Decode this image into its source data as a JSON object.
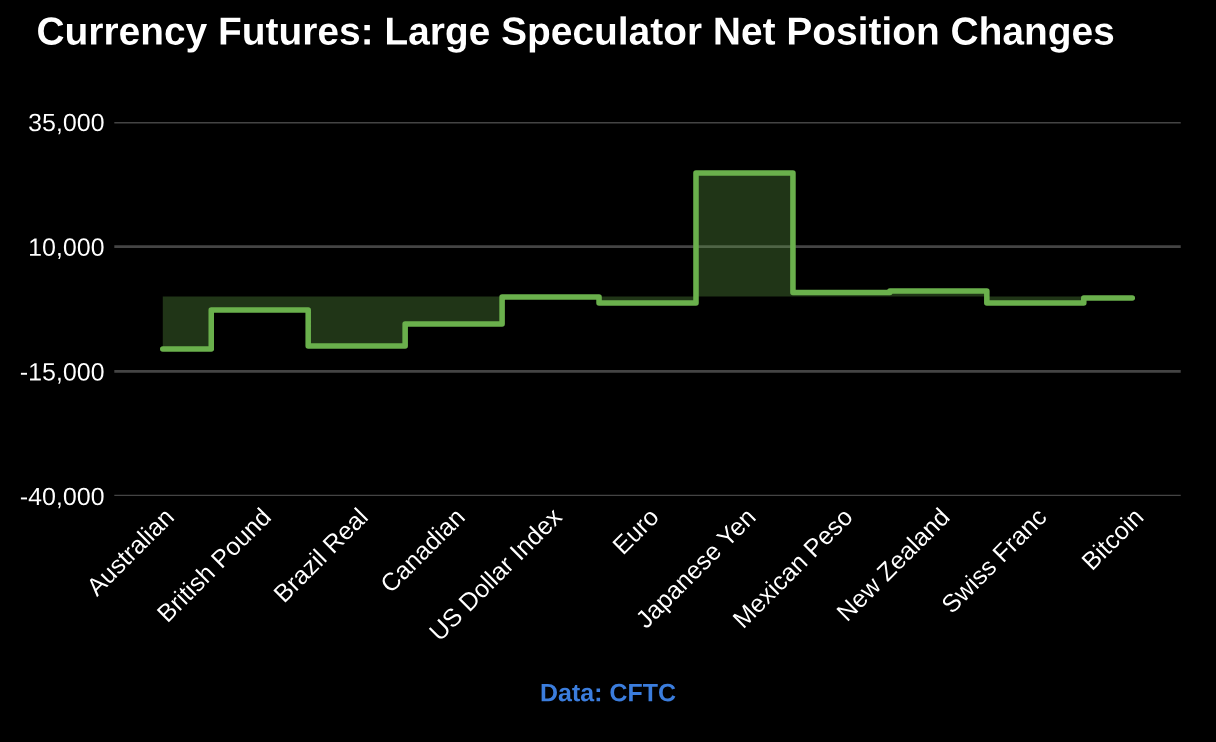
{
  "chart_data": {
    "type": "step",
    "title": "Currency Futures: Large Speculator Net Position Changes",
    "categories": [
      "Australian",
      "British Pound",
      "Brazil Real",
      "Canadian",
      "US Dollar Index",
      "Euro",
      "Japanese Yen",
      "Mexican Peso",
      "New Zealand",
      "Swiss Franc",
      "Bitcoin"
    ],
    "series": [
      {
        "color": "#6ab04c",
        "values": [
          -10500,
          -2700,
          -9900,
          -5500,
          -100,
          -1300,
          24800,
          800,
          1100,
          -1300,
          -300
        ]
      }
    ],
    "ylim": [
      -40000,
      35000
    ],
    "yticks": [
      {
        "value": -40000,
        "label": "-40,000"
      },
      {
        "value": -15000,
        "label": "-15,000"
      },
      {
        "value": 10000,
        "label": "10,000"
      },
      {
        "value": 35000,
        "label": "35,000"
      }
    ],
    "grid": "y",
    "legend": false,
    "annotations": [
      "Data: CFTC"
    ]
  }
}
